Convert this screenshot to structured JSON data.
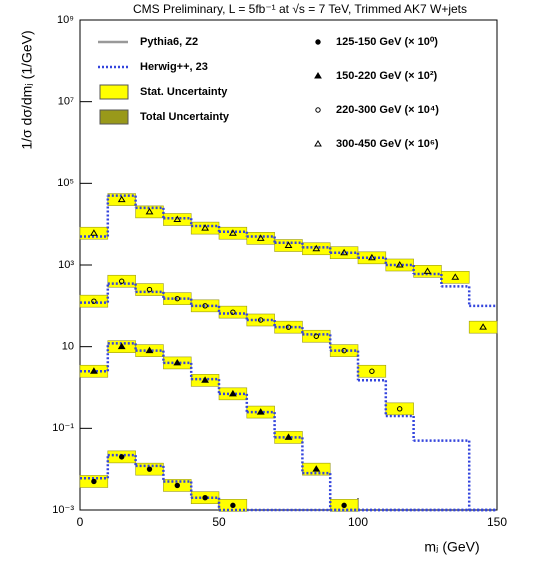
{
  "chart_data": {
    "type": "hep-histogram",
    "title": "CMS Preliminary, L = 5fb⁻¹ at √s = 7 TeV, Trimmed AK7 W+jets",
    "x_label": "mⱼ (GeV)",
    "y_label": "1/σ dσ/dmⱼ (1/GeV)",
    "bins": [
      0,
      10,
      20,
      30,
      40,
      50,
      60,
      70,
      80,
      90,
      100,
      110,
      120,
      130,
      140,
      150
    ],
    "xlim": [
      0,
      150
    ],
    "xticks": [
      0,
      50,
      100,
      150
    ],
    "ylim": [
      0.001,
      1000000000
    ],
    "yticks": [
      {
        "value": 0.001,
        "label": "10⁻³"
      },
      {
        "value": 0.1,
        "label": "10⁻¹"
      },
      10,
      {
        "value": 1000,
        "label": "10³"
      },
      {
        "value": 100000,
        "label": "10⁵"
      },
      {
        "value": 10000000,
        "label": "10⁷"
      },
      {
        "value": 1000000000,
        "label": "10⁹"
      }
    ],
    "log_y": true,
    "mc_models": [
      {
        "name": "Pythia6, Z2",
        "color": "#999999"
      },
      {
        "name": "Herwig++, 23",
        "color": "#3344dd"
      }
    ],
    "uncertainties": [
      {
        "name": "Stat. Uncertainty",
        "color": "#ffff00"
      },
      {
        "name": "Total Uncertainty",
        "color": "#99991a"
      }
    ],
    "series": [
      {
        "name": "125-150 GeV (× 10⁰)",
        "marker": "circle-filled",
        "values": [
          0.005,
          0.02,
          0.01,
          0.004,
          0.002,
          0.0013,
          null,
          null,
          null,
          0.0013,
          null,
          null,
          null,
          null,
          null
        ],
        "herwig": [
          0.006,
          0.022,
          0.012,
          0.005,
          0.002,
          0.001,
          0.001,
          0.001,
          0.001,
          0.001,
          0.001,
          0.001,
          0.001,
          0.001,
          0.001
        ]
      },
      {
        "name": "150-220 GeV (× 10²)",
        "marker": "triangle-filled",
        "values": [
          2.5,
          10,
          8,
          4,
          1.5,
          0.7,
          0.25,
          0.06,
          0.01,
          null,
          null,
          null,
          null,
          null,
          null
        ],
        "herwig": [
          2.5,
          12,
          8,
          4,
          1.6,
          0.7,
          0.25,
          0.06,
          0.008,
          0.001,
          0.001,
          0.001,
          0.001,
          0.001,
          0.001
        ]
      },
      {
        "name": "220-300 GeV (× 10⁴)",
        "marker": "circle-open",
        "values": [
          130,
          400,
          250,
          150,
          100,
          70,
          45,
          30,
          18,
          8,
          2.5,
          0.3,
          null,
          null,
          null
        ],
        "herwig": [
          120,
          350,
          220,
          150,
          100,
          65,
          45,
          30,
          20,
          8,
          1.5,
          0.2,
          0.05,
          0.05,
          0.001
        ]
      },
      {
        "name": "300-450 GeV (× 10⁶)",
        "marker": "triangle-open",
        "values": [
          6000,
          40000,
          20000,
          13000,
          8000,
          6000,
          4500,
          3000,
          2500,
          2000,
          1500,
          1000,
          700,
          500,
          30
        ],
        "herwig": [
          5000,
          50000,
          25000,
          14000,
          9000,
          6500,
          5000,
          3500,
          2700,
          2000,
          1500,
          1000,
          600,
          300,
          100
        ]
      }
    ]
  }
}
